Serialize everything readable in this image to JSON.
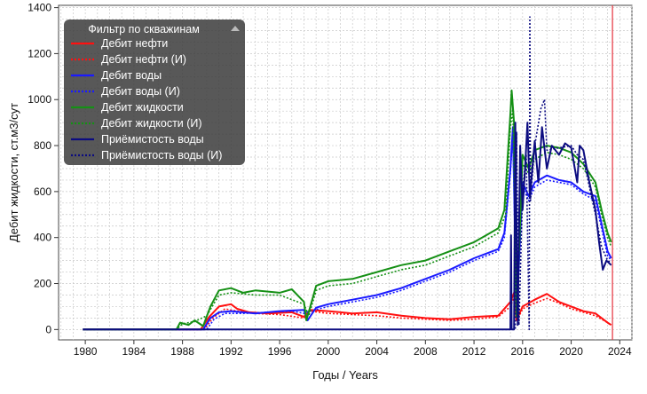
{
  "chart_data": {
    "type": "line",
    "xlabel": "Годы / Years",
    "ylabel": "Дебит жидкости, ст.м3/сут",
    "xlim": [
      1977.8,
      2025.0
    ],
    "ylim": [
      -45,
      1410
    ],
    "x_ticks": [
      1980,
      1984,
      1988,
      1992,
      1996,
      2000,
      2004,
      2008,
      2012,
      2016,
      2020,
      2024
    ],
    "y_ticks": [
      0,
      200,
      400,
      600,
      800,
      1000,
      1200,
      1400
    ],
    "grid": true,
    "legend": {
      "title": "Фильтр по скважинам",
      "placement": "top-left",
      "collapse_icon": "triangle-up-icon"
    },
    "vertical_marker": {
      "x": 2023.4,
      "color": "#e8404a"
    },
    "series": [
      {
        "name": "Дебит нефти",
        "color": "#ff1010",
        "dashed": false,
        "points": [
          [
            1979.8,
            0
          ],
          [
            1987.5,
            0
          ],
          [
            1989.5,
            0
          ],
          [
            1990.2,
            55
          ],
          [
            1991,
            100
          ],
          [
            1992,
            110
          ],
          [
            1992.5,
            90
          ],
          [
            1993.5,
            75
          ],
          [
            1995,
            70
          ],
          [
            1997,
            75
          ],
          [
            1998,
            55
          ],
          [
            1998.5,
            85
          ],
          [
            2000,
            80
          ],
          [
            2002,
            70
          ],
          [
            2004,
            75
          ],
          [
            2006,
            60
          ],
          [
            2008,
            50
          ],
          [
            2010,
            45
          ],
          [
            2012,
            55
          ],
          [
            2014,
            60
          ],
          [
            2015,
            120
          ],
          [
            2015.3,
            160
          ],
          [
            2015.5,
            40
          ],
          [
            2016,
            100
          ],
          [
            2017,
            130
          ],
          [
            2018,
            155
          ],
          [
            2019,
            120
          ],
          [
            2020,
            100
          ],
          [
            2021,
            80
          ],
          [
            2022,
            70
          ],
          [
            2023,
            30
          ],
          [
            2023.3,
            20
          ]
        ]
      },
      {
        "name": "Дебит нефти (И)",
        "color": "#ff1010",
        "dashed": true,
        "points": [
          [
            1979.8,
            0
          ],
          [
            1987.5,
            0
          ],
          [
            1989.8,
            0
          ],
          [
            1990.5,
            50
          ],
          [
            1991.5,
            90
          ],
          [
            1992.5,
            80
          ],
          [
            1994,
            70
          ],
          [
            1996,
            65
          ],
          [
            1998,
            50
          ],
          [
            1998.5,
            80
          ],
          [
            2000,
            70
          ],
          [
            2002,
            65
          ],
          [
            2004,
            60
          ],
          [
            2006,
            50
          ],
          [
            2008,
            45
          ],
          [
            2010,
            40
          ],
          [
            2012,
            45
          ],
          [
            2014,
            55
          ],
          [
            2015,
            100
          ],
          [
            2015.3,
            140
          ],
          [
            2015.5,
            35
          ],
          [
            2016,
            90
          ],
          [
            2017,
            115
          ],
          [
            2018,
            135
          ],
          [
            2019,
            115
          ],
          [
            2020,
            90
          ],
          [
            2021,
            75
          ],
          [
            2022,
            60
          ],
          [
            2023,
            30
          ],
          [
            2023.3,
            18
          ]
        ]
      },
      {
        "name": "Дебит воды",
        "color": "#1a1aff",
        "dashed": false,
        "points": [
          [
            1979.8,
            0
          ],
          [
            1988,
            0
          ],
          [
            1989.7,
            0
          ],
          [
            1990.3,
            50
          ],
          [
            1991,
            75
          ],
          [
            1992,
            80
          ],
          [
            1994,
            70
          ],
          [
            1996,
            80
          ],
          [
            1998,
            85
          ],
          [
            1998.3,
            40
          ],
          [
            1999,
            95
          ],
          [
            2000,
            110
          ],
          [
            2002,
            130
          ],
          [
            2004,
            150
          ],
          [
            2006,
            180
          ],
          [
            2008,
            220
          ],
          [
            2010,
            260
          ],
          [
            2012,
            310
          ],
          [
            2013,
            330
          ],
          [
            2014,
            350
          ],
          [
            2014.5,
            420
          ],
          [
            2015,
            700
          ],
          [
            2015.2,
            880
          ],
          [
            2015.5,
            60
          ],
          [
            2016,
            640
          ],
          [
            2016.5,
            580
          ],
          [
            2017,
            640
          ],
          [
            2018,
            670
          ],
          [
            2019,
            650
          ],
          [
            2020,
            640
          ],
          [
            2021,
            600
          ],
          [
            2022,
            580
          ],
          [
            2022.5,
            460
          ],
          [
            2023,
            340
          ],
          [
            2023.3,
            310
          ]
        ]
      },
      {
        "name": "Дебит воды (И)",
        "color": "#1a1aff",
        "dashed": true,
        "points": [
          [
            1979.8,
            0
          ],
          [
            1988,
            0
          ],
          [
            1990,
            0
          ],
          [
            1990.6,
            45
          ],
          [
            1991.5,
            70
          ],
          [
            1993,
            70
          ],
          [
            1995,
            75
          ],
          [
            1997,
            80
          ],
          [
            1998,
            70
          ],
          [
            1998.5,
            80
          ],
          [
            2000,
            100
          ],
          [
            2002,
            120
          ],
          [
            2004,
            140
          ],
          [
            2006,
            170
          ],
          [
            2008,
            210
          ],
          [
            2010,
            250
          ],
          [
            2012,
            300
          ],
          [
            2014,
            340
          ],
          [
            2014.5,
            400
          ],
          [
            2015,
            680
          ],
          [
            2015.2,
            860
          ],
          [
            2015.5,
            55
          ],
          [
            2016,
            620
          ],
          [
            2016.5,
            560
          ],
          [
            2017,
            620
          ],
          [
            2018,
            650
          ],
          [
            2019,
            640
          ],
          [
            2020,
            630
          ],
          [
            2021,
            590
          ],
          [
            2022,
            560
          ],
          [
            2022.5,
            440
          ],
          [
            2023,
            320
          ],
          [
            2023.3,
            300
          ]
        ]
      },
      {
        "name": "Дебит жидкости",
        "color": "#159015",
        "dashed": false,
        "points": [
          [
            1979.8,
            0
          ],
          [
            1987.5,
            0
          ],
          [
            1987.8,
            30
          ],
          [
            1988.5,
            20
          ],
          [
            1989,
            40
          ],
          [
            1989.7,
            15
          ],
          [
            1990.3,
            100
          ],
          [
            1991,
            170
          ],
          [
            1992,
            180
          ],
          [
            1993,
            160
          ],
          [
            1994,
            170
          ],
          [
            1996,
            160
          ],
          [
            1997,
            175
          ],
          [
            1998,
            120
          ],
          [
            1998.2,
            40
          ],
          [
            1999,
            190
          ],
          [
            2000,
            210
          ],
          [
            2002,
            220
          ],
          [
            2004,
            250
          ],
          [
            2006,
            280
          ],
          [
            2008,
            300
          ],
          [
            2010,
            340
          ],
          [
            2012,
            380
          ],
          [
            2013,
            410
          ],
          [
            2014,
            440
          ],
          [
            2014.5,
            520
          ],
          [
            2015,
            940
          ],
          [
            2015.1,
            1040
          ],
          [
            2015.3,
            900
          ],
          [
            2015.5,
            60
          ],
          [
            2016,
            760
          ],
          [
            2016.5,
            700
          ],
          [
            2017,
            780
          ],
          [
            2018,
            800
          ],
          [
            2019,
            790
          ],
          [
            2020,
            770
          ],
          [
            2021,
            720
          ],
          [
            2022,
            640
          ],
          [
            2022.5,
            520
          ],
          [
            2023,
            420
          ],
          [
            2023.3,
            380
          ]
        ]
      },
      {
        "name": "Дебит жидкости (И)",
        "color": "#159015",
        "dashed": true,
        "points": [
          [
            1979.8,
            0
          ],
          [
            1987.5,
            0
          ],
          [
            1988,
            25
          ],
          [
            1989,
            35
          ],
          [
            1990,
            60
          ],
          [
            1991,
            150
          ],
          [
            1992,
            160
          ],
          [
            1994,
            150
          ],
          [
            1996,
            150
          ],
          [
            1998,
            110
          ],
          [
            1998.4,
            60
          ],
          [
            1999,
            170
          ],
          [
            2000,
            190
          ],
          [
            2002,
            200
          ],
          [
            2004,
            230
          ],
          [
            2006,
            260
          ],
          [
            2008,
            280
          ],
          [
            2010,
            320
          ],
          [
            2012,
            360
          ],
          [
            2014,
            420
          ],
          [
            2014.6,
            500
          ],
          [
            2015,
            880
          ],
          [
            2015.2,
            960
          ],
          [
            2015.5,
            55
          ],
          [
            2016,
            720
          ],
          [
            2016.5,
            680
          ],
          [
            2017,
            740
          ],
          [
            2018,
            770
          ],
          [
            2019,
            760
          ],
          [
            2020,
            740
          ],
          [
            2021,
            700
          ],
          [
            2022,
            620
          ],
          [
            2022.5,
            500
          ],
          [
            2023,
            400
          ],
          [
            2023.3,
            360
          ]
        ]
      },
      {
        "name": "Приёмистость воды",
        "color": "#0c0c80",
        "dashed": false,
        "points": [
          [
            1979.8,
            0
          ],
          [
            2015,
            0
          ],
          [
            2015.05,
            410
          ],
          [
            2015.1,
            0
          ],
          [
            2015.3,
            0
          ],
          [
            2015.4,
            900
          ],
          [
            2015.6,
            20
          ],
          [
            2015.8,
            800
          ],
          [
            2016,
            520
          ],
          [
            2016.2,
            700
          ],
          [
            2016.4,
            900
          ],
          [
            2016.6,
            580
          ],
          [
            2016.8,
            700
          ],
          [
            2017,
            820
          ],
          [
            2017.3,
            640
          ],
          [
            2017.6,
            880
          ],
          [
            2018,
            700
          ],
          [
            2018.4,
            800
          ],
          [
            2019,
            760
          ],
          [
            2019.5,
            810
          ],
          [
            2020,
            790
          ],
          [
            2020.5,
            640
          ],
          [
            2020.7,
            800
          ],
          [
            2021,
            780
          ],
          [
            2021.5,
            640
          ],
          [
            2022,
            520
          ],
          [
            2022.3,
            380
          ],
          [
            2022.6,
            260
          ],
          [
            2022.9,
            300
          ],
          [
            2023.3,
            280
          ]
        ]
      },
      {
        "name": "Приёмистость воды (И)",
        "color": "#0c0c80",
        "dashed": true,
        "points": [
          [
            1979.8,
            0
          ],
          [
            2015,
            0
          ],
          [
            2015.4,
            0
          ],
          [
            2015.5,
            860
          ],
          [
            2015.7,
            20
          ],
          [
            2016,
            600
          ],
          [
            2016.3,
            760
          ],
          [
            2016.55,
            0
          ],
          [
            2016.6,
            1360
          ],
          [
            2016.65,
            560
          ],
          [
            2017,
            800
          ],
          [
            2017.5,
            960
          ],
          [
            2017.8,
            1000
          ],
          [
            2018,
            780
          ],
          [
            2019,
            790
          ],
          [
            2020,
            800
          ],
          [
            2020.5,
            760
          ],
          [
            2021,
            740
          ],
          [
            2021.5,
            620
          ],
          [
            2022,
            500
          ],
          [
            2022.5,
            360
          ],
          [
            2023,
            300
          ],
          [
            2023.3,
            290
          ]
        ]
      }
    ]
  }
}
